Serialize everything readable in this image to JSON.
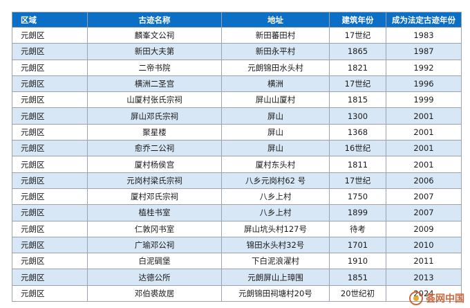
{
  "table": {
    "headers": [
      "区域",
      "古迹名称",
      "地址",
      "建筑年份",
      "成为法定古迹年份"
    ],
    "rows": [
      [
        "元朗区",
        "麟峯文公祠",
        "新田蕃田村",
        "17世纪",
        "1983"
      ],
      [
        "元朗区",
        "新田大夫第",
        "新田永平村",
        "1865",
        "1987"
      ],
      [
        "元朗区",
        "二帝书院",
        "元朗锦田水头村",
        "1821",
        "1992"
      ],
      [
        "元朗区",
        "横洲二圣宫",
        "横洲",
        "17世纪",
        "1996"
      ],
      [
        "元朗区",
        "山厦村张氏宗祠",
        "屏山山厦村",
        "1815",
        "1999"
      ],
      [
        "元朗区",
        "屏山邓氏宗祠",
        "屏山",
        "1300",
        "2001"
      ],
      [
        "元朗区",
        "聚星楼",
        "屏山",
        "1368",
        "2001"
      ],
      [
        "元朗区",
        "愈乔二公祠",
        "屏山",
        "16世纪",
        "2001"
      ],
      [
        "元朗区",
        "厦村杨侯宫",
        "厦村东头村",
        "1811",
        "2001"
      ],
      [
        "元朗区",
        "元岗村梁氏宗祠",
        "八乡元岗村62 号",
        "17世纪",
        "2006"
      ],
      [
        "元朗区",
        "厦村邓氏宗祠",
        "八乡上村",
        "1750",
        "2007"
      ],
      [
        "元朗区",
        "植桂书室",
        "八乡上村",
        "1899",
        "2007"
      ],
      [
        "元朗区",
        "仁敦冈书室",
        "屏山坑头村127号",
        "待考",
        "2009"
      ],
      [
        "元朗区",
        "广瑜邓公祠",
        "锦田水头村32号",
        "1701",
        "2010"
      ],
      [
        "元朗区",
        "白泥碉堡",
        "下白泥浪濯村",
        "1910",
        "2011"
      ],
      [
        "元朗区",
        "达德公所",
        "元朗屏山上璋围",
        "1851",
        "2013"
      ],
      [
        "元朗区",
        "邓伯裘故居",
        "元朗锦田祠塘村20号",
        "20世纪初",
        "2024"
      ]
    ]
  },
  "watermark": {
    "text": "荟网中国"
  }
}
